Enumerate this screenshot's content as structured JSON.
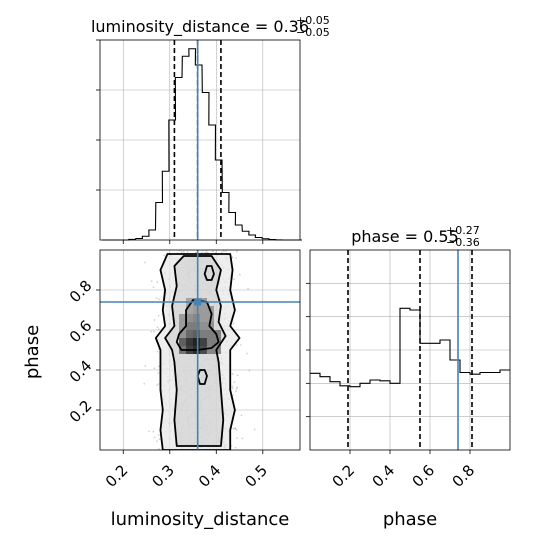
{
  "colors": {
    "truth": "#4682b4",
    "hist": "#000000",
    "grid": "#b0b0b0",
    "quantile": "#000000"
  },
  "chart_data": [
    {
      "type": "histogram",
      "panel": "luminosity_distance marginal",
      "title": {
        "name": "luminosity_distance",
        "value": "0.36",
        "plus": "+0.05",
        "minus": "−0.05",
        "eq": " = "
      },
      "xlim": [
        0.15,
        0.58
      ],
      "bin_width": 0.0143,
      "bin_starts": [
        0.155,
        0.169,
        0.184,
        0.198,
        0.212,
        0.227,
        0.241,
        0.255,
        0.27,
        0.284,
        0.298,
        0.312,
        0.327,
        0.341,
        0.355,
        0.37,
        0.384,
        0.398,
        0.413,
        0.427,
        0.441,
        0.456,
        0.47,
        0.484,
        0.499,
        0.513,
        0.527,
        0.542,
        0.556,
        0.57
      ],
      "density": [
        0,
        0,
        0,
        0,
        0.5,
        1.2,
        3.0,
        8.0,
        30,
        55,
        96,
        130,
        147,
        153,
        140,
        118,
        92,
        64,
        38,
        22,
        12,
        7,
        4,
        2,
        1,
        0.4,
        0.1,
        0,
        0,
        0
      ],
      "ylim": [
        0,
        160
      ],
      "quantiles": [
        0.31,
        0.36,
        0.41
      ],
      "truth": 0.36
    },
    {
      "type": "histogram",
      "panel": "phase marginal",
      "title": {
        "name": "phase",
        "value": "0.55",
        "plus": "+0.27",
        "minus": "−0.36",
        "eq": " = "
      },
      "xlim": [
        0,
        1
      ],
      "xticks": [
        "0.2",
        "0.4",
        "0.6",
        "0.8"
      ],
      "xlabel": "phase",
      "bin_starts": [
        0,
        0.05,
        0.1,
        0.15,
        0.2,
        0.25,
        0.3,
        0.35,
        0.4,
        0.45,
        0.5,
        0.55,
        0.6,
        0.65,
        0.7,
        0.75,
        0.8,
        0.85,
        0.9,
        0.95
      ],
      "density": [
        0.92,
        0.88,
        0.82,
        0.77,
        0.76,
        0.8,
        0.84,
        0.83,
        0.8,
        1.7,
        1.68,
        1.28,
        1.28,
        1.32,
        1.08,
        0.93,
        0.91,
        0.93,
        0.93,
        0.96
      ],
      "ylim": [
        0,
        2.4
      ],
      "quantiles": [
        0.19,
        0.55,
        0.81
      ],
      "truth": 0.74
    },
    {
      "type": "contour",
      "panel": "luminosity_distance vs phase",
      "xlim": [
        0.15,
        0.58
      ],
      "ylim": [
        0,
        1
      ],
      "xticks": [
        "0.2",
        "0.3",
        "0.4",
        "0.5"
      ],
      "yticks": [
        "0.2",
        "0.4",
        "0.6",
        "0.8"
      ],
      "xlabel": "luminosity_distance",
      "ylabel": "phase",
      "truth": {
        "x": 0.36,
        "y": 0.74
      },
      "contours": [
        {
          "level": "outer",
          "points": [
            [
              0.285,
              0.0
            ],
            [
              0.28,
              0.1
            ],
            [
              0.285,
              0.2
            ],
            [
              0.28,
              0.3
            ],
            [
              0.28,
              0.42
            ],
            [
              0.28,
              0.5
            ],
            [
              0.27,
              0.56
            ],
            [
              0.29,
              0.62
            ],
            [
              0.285,
              0.7
            ],
            [
              0.29,
              0.8
            ],
            [
              0.28,
              0.9
            ],
            [
              0.295,
              0.98
            ],
            [
              0.43,
              0.98
            ],
            [
              0.435,
              0.9
            ],
            [
              0.43,
              0.8
            ],
            [
              0.44,
              0.7
            ],
            [
              0.43,
              0.62
            ],
            [
              0.45,
              0.56
            ],
            [
              0.43,
              0.5
            ],
            [
              0.43,
              0.42
            ],
            [
              0.43,
              0.3
            ],
            [
              0.44,
              0.2
            ],
            [
              0.43,
              0.1
            ],
            [
              0.43,
              0.0
            ]
          ]
        },
        {
          "level": "middle",
          "points": [
            [
              0.315,
              0.02
            ],
            [
              0.31,
              0.15
            ],
            [
              0.315,
              0.3
            ],
            [
              0.31,
              0.44
            ],
            [
              0.305,
              0.5
            ],
            [
              0.29,
              0.56
            ],
            [
              0.31,
              0.62
            ],
            [
              0.305,
              0.72
            ],
            [
              0.315,
              0.82
            ],
            [
              0.31,
              0.92
            ],
            [
              0.33,
              0.97
            ],
            [
              0.39,
              0.97
            ],
            [
              0.41,
              0.9
            ],
            [
              0.4,
              0.8
            ],
            [
              0.41,
              0.72
            ],
            [
              0.405,
              0.64
            ],
            [
              0.42,
              0.57
            ],
            [
              0.4,
              0.5
            ],
            [
              0.405,
              0.44
            ],
            [
              0.41,
              0.3
            ],
            [
              0.415,
              0.15
            ],
            [
              0.41,
              0.02
            ]
          ]
        },
        {
          "level": "inner",
          "points": [
            [
              0.325,
              0.5
            ],
            [
              0.315,
              0.54
            ],
            [
              0.32,
              0.58
            ],
            [
              0.335,
              0.62
            ],
            [
              0.335,
              0.7
            ],
            [
              0.35,
              0.75
            ],
            [
              0.38,
              0.74
            ],
            [
              0.39,
              0.68
            ],
            [
              0.385,
              0.62
            ],
            [
              0.4,
              0.58
            ],
            [
              0.405,
              0.54
            ],
            [
              0.39,
              0.51
            ],
            [
              0.36,
              0.5
            ]
          ]
        },
        {
          "level": "island-upper",
          "points": [
            [
              0.38,
              0.85
            ],
            [
              0.375,
              0.88
            ],
            [
              0.38,
              0.92
            ],
            [
              0.39,
              0.92
            ],
            [
              0.395,
              0.88
            ],
            [
              0.39,
              0.85
            ]
          ]
        },
        {
          "level": "island-lower",
          "points": [
            [
              0.365,
              0.33
            ],
            [
              0.36,
              0.37
            ],
            [
              0.365,
              0.4
            ],
            [
              0.375,
              0.4
            ],
            [
              0.38,
              0.37
            ],
            [
              0.375,
              0.33
            ]
          ]
        }
      ],
      "density_cells": [
        [
          0.335,
          0.52,
          0.6
        ],
        [
          0.35,
          0.52,
          0.85
        ],
        [
          0.365,
          0.52,
          0.95
        ],
        [
          0.38,
          0.52,
          0.8
        ],
        [
          0.395,
          0.52,
          0.5
        ],
        [
          0.335,
          0.56,
          0.7
        ],
        [
          0.35,
          0.56,
          0.9
        ],
        [
          0.365,
          0.56,
          1.0
        ],
        [
          0.38,
          0.56,
          0.85
        ],
        [
          0.395,
          0.56,
          0.55
        ],
        [
          0.335,
          0.6,
          0.45
        ],
        [
          0.35,
          0.6,
          0.65
        ],
        [
          0.365,
          0.6,
          0.7
        ],
        [
          0.38,
          0.6,
          0.55
        ],
        [
          0.335,
          0.64,
          0.4
        ],
        [
          0.35,
          0.64,
          0.55
        ],
        [
          0.365,
          0.64,
          0.55
        ],
        [
          0.38,
          0.64,
          0.45
        ],
        [
          0.35,
          0.68,
          0.45
        ],
        [
          0.365,
          0.68,
          0.5
        ],
        [
          0.38,
          0.68,
          0.4
        ],
        [
          0.35,
          0.72,
          0.35
        ],
        [
          0.365,
          0.72,
          0.4
        ]
      ]
    }
  ]
}
